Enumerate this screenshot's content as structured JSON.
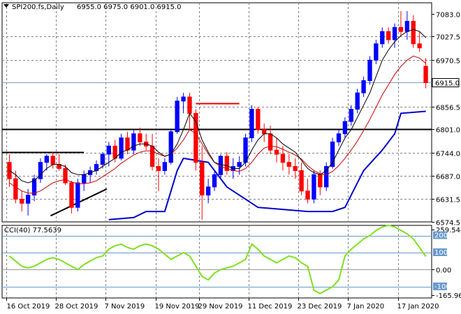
{
  "chart_data": {
    "type": "candlestick",
    "header": {
      "symbol_label": "SPI200.fs,Daily",
      "ohlc_label": "6955.0 6975.0 6901.0 6915.0"
    },
    "price_axis": {
      "range": [
        6574.5,
        7100
      ],
      "ticks": [
        "7083.0",
        "7027.5",
        "6970.5",
        "6915.0",
        "6856.5",
        "6801.0",
        "6744.0",
        "6687.0",
        "6631.5",
        "6574.5"
      ],
      "tick_values": [
        7083.0,
        7027.5,
        6970.5,
        6915.0,
        6856.5,
        6801.0,
        6744.0,
        6687.0,
        6631.5,
        6574.5
      ],
      "current_price_label": "6915.0",
      "current_price": 6915.0
    },
    "time_axis": {
      "labels": [
        "16 Oct 2019",
        "28 Oct 2019",
        "7 Nov 2019",
        "19 Nov 2019",
        "29 Nov 2019",
        "11 Dec 2019",
        "23 Dec 2019",
        "7 Jan 2020",
        "17 Jan 2020"
      ],
      "label_bar_index": [
        0,
        8,
        16,
        24,
        31,
        39,
        47,
        55,
        63
      ]
    },
    "candles": [
      [
        6720,
        6740,
        6660,
        6680
      ],
      [
        6680,
        6700,
        6620,
        6630
      ],
      [
        6630,
        6650,
        6600,
        6620
      ],
      [
        6620,
        6655,
        6590,
        6640
      ],
      [
        6640,
        6690,
        6625,
        6680
      ],
      [
        6680,
        6730,
        6670,
        6720
      ],
      [
        6720,
        6740,
        6700,
        6735
      ],
      [
        6735,
        6745,
        6705,
        6715
      ],
      [
        6715,
        6740,
        6700,
        6705
      ],
      [
        6705,
        6715,
        6665,
        6670
      ],
      [
        6670,
        6675,
        6595,
        6610
      ],
      [
        6610,
        6680,
        6600,
        6670
      ],
      [
        6670,
        6700,
        6650,
        6690
      ],
      [
        6690,
        6710,
        6670,
        6700
      ],
      [
        6700,
        6725,
        6690,
        6715
      ],
      [
        6715,
        6745,
        6705,
        6740
      ],
      [
        6740,
        6770,
        6710,
        6760
      ],
      [
        6760,
        6775,
        6720,
        6730
      ],
      [
        6730,
        6790,
        6725,
        6780
      ],
      [
        6780,
        6795,
        6740,
        6750
      ],
      [
        6750,
        6800,
        6740,
        6790
      ],
      [
        6790,
        6805,
        6760,
        6770
      ],
      [
        6770,
        6790,
        6750,
        6760
      ],
      [
        6760,
        6790,
        6700,
        6710
      ],
      [
        6710,
        6730,
        6650,
        6700
      ],
      [
        6700,
        6730,
        6690,
        6720
      ],
      [
        6720,
        6800,
        6715,
        6795
      ],
      [
        6795,
        6880,
        6790,
        6870
      ],
      [
        6870,
        6890,
        6840,
        6880
      ],
      [
        6880,
        6890,
        6800,
        6840
      ],
      [
        6840,
        6850,
        6700,
        6720
      ],
      [
        6720,
        6760,
        6580,
        6640
      ],
      [
        6640,
        6680,
        6620,
        6660
      ],
      [
        6660,
        6700,
        6650,
        6690
      ],
      [
        6690,
        6740,
        6680,
        6735
      ],
      [
        6735,
        6745,
        6690,
        6700
      ],
      [
        6700,
        6730,
        6680,
        6710
      ],
      [
        6710,
        6735,
        6690,
        6720
      ],
      [
        6720,
        6790,
        6710,
        6780
      ],
      [
        6780,
        6860,
        6770,
        6850
      ],
      [
        6850,
        6855,
        6790,
        6800
      ],
      [
        6800,
        6815,
        6770,
        6790
      ],
      [
        6790,
        6810,
        6740,
        6750
      ],
      [
        6750,
        6780,
        6720,
        6740
      ],
      [
        6740,
        6760,
        6700,
        6720
      ],
      [
        6720,
        6740,
        6690,
        6710
      ],
      [
        6710,
        6730,
        6680,
        6700
      ],
      [
        6700,
        6720,
        6640,
        6650
      ],
      [
        6650,
        6680,
        6620,
        6630
      ],
      [
        6630,
        6700,
        6620,
        6690
      ],
      [
        6690,
        6700,
        6640,
        6660
      ],
      [
        6660,
        6720,
        6650,
        6710
      ],
      [
        6710,
        6780,
        6705,
        6770
      ],
      [
        6770,
        6800,
        6760,
        6790
      ],
      [
        6790,
        6830,
        6780,
        6820
      ],
      [
        6820,
        6860,
        6810,
        6850
      ],
      [
        6850,
        6900,
        6840,
        6890
      ],
      [
        6890,
        6930,
        6880,
        6920
      ],
      [
        6920,
        6980,
        6910,
        6970
      ],
      [
        6970,
        7020,
        6960,
        7010
      ],
      [
        7010,
        7050,
        7000,
        7040
      ],
      [
        7040,
        7050,
        7010,
        7020
      ],
      [
        7020,
        7060,
        7000,
        7050
      ],
      [
        7050,
        7090,
        7030,
        7040
      ],
      [
        7040,
        7090,
        7020,
        7065
      ],
      [
        7065,
        7080,
        7000,
        7010
      ],
      [
        7010,
        7040,
        6990,
        7000
      ],
      [
        6955,
        6975,
        6901,
        6915
      ]
    ],
    "moving_average_black": [
      6700,
      6690,
      6675,
      6670,
      6675,
      6690,
      6705,
      6715,
      6715,
      6710,
      6695,
      6690,
      6690,
      6695,
      6700,
      6710,
      6720,
      6730,
      6745,
      6750,
      6760,
      6765,
      6765,
      6760,
      6745,
      6735,
      6740,
      6765,
      6800,
      6840,
      6820,
      6775,
      6745,
      6720,
      6715,
      6712,
      6705,
      6705,
      6720,
      6750,
      6775,
      6790,
      6790,
      6780,
      6765,
      6755,
      6745,
      6725,
      6705,
      6695,
      6690,
      6700,
      6720,
      6750,
      6780,
      6800,
      6830,
      6860,
      6890,
      6930,
      6970,
      6995,
      7015,
      7030,
      7040,
      7045,
      7040,
      7025
    ],
    "moving_average_red": [
      6670,
      6660,
      6650,
      6645,
      6645,
      6650,
      6660,
      6670,
      6675,
      6678,
      6672,
      6668,
      6668,
      6670,
      6675,
      6685,
      6695,
      6705,
      6718,
      6728,
      6738,
      6745,
      6748,
      6748,
      6740,
      6735,
      6740,
      6755,
      6775,
      6800,
      6790,
      6765,
      6740,
      6720,
      6710,
      6705,
      6700,
      6698,
      6705,
      6720,
      6740,
      6755,
      6760,
      6758,
      6752,
      6745,
      6738,
      6728,
      6712,
      6700,
      6692,
      6690,
      6698,
      6712,
      6730,
      6750,
      6772,
      6798,
      6825,
      6855,
      6885,
      6910,
      6935,
      6955,
      6970,
      6980,
      6975,
      6962
    ],
    "trailing_stop_blue": [
      [
        16,
        6580
      ],
      [
        20,
        6585
      ],
      [
        22,
        6600
      ],
      [
        25,
        6600
      ],
      [
        27,
        6700
      ],
      [
        28,
        6730
      ],
      [
        32,
        6720
      ],
      [
        35,
        6660
      ],
      [
        40,
        6610
      ],
      [
        44,
        6605
      ],
      [
        48,
        6600
      ],
      [
        52,
        6600
      ],
      [
        54,
        6610
      ],
      [
        57,
        6700
      ],
      [
        60,
        6750
      ],
      [
        62,
        6790
      ],
      [
        63,
        6840
      ],
      [
        67,
        6845
      ]
    ],
    "horizontal_levels": [
      {
        "price": 6801.0,
        "from": 0,
        "to": 67,
        "color": "#000000"
      },
      {
        "price": 6745.0,
        "from": 0,
        "to": 12,
        "color": "#000000"
      },
      {
        "price": 6865.0,
        "from": 30,
        "to": 37,
        "color": "#e00000"
      }
    ],
    "trendline": {
      "from": [
        10,
        6615
      ],
      "to": [
        15,
        6655
      ],
      "color": "#000000"
    },
    "cci_panel": {
      "label": "CCI(40) 77.5639",
      "axis_labels": [
        "259.5442",
        "200",
        "100",
        "0.00",
        "-100",
        "-165.969"
      ],
      "range": [
        -165.969,
        259.5442
      ],
      "levels": [
        200,
        100,
        0,
        -100
      ],
      "values": [
        80,
        50,
        20,
        10,
        20,
        40,
        60,
        70,
        60,
        40,
        20,
        0,
        30,
        50,
        70,
        80,
        120,
        140,
        150,
        130,
        120,
        140,
        150,
        140,
        120,
        90,
        60,
        80,
        100,
        80,
        20,
        -40,
        -60,
        -20,
        0,
        10,
        20,
        40,
        60,
        150,
        120,
        80,
        60,
        40,
        60,
        80,
        70,
        40,
        20,
        -120,
        -140,
        -120,
        -100,
        -60,
        80,
        120,
        150,
        180,
        200,
        230,
        250,
        260,
        250,
        230,
        210,
        180,
        130,
        77.56
      ]
    },
    "colors": {
      "bull": "#0000ff",
      "bear": "#ff0000",
      "ma_black": "#000000",
      "ma_red": "#cc0000",
      "stop_blue": "#0000cc",
      "cci_line": "#7fe020",
      "cci_level": "#6699cc",
      "grid": "#808080"
    }
  }
}
